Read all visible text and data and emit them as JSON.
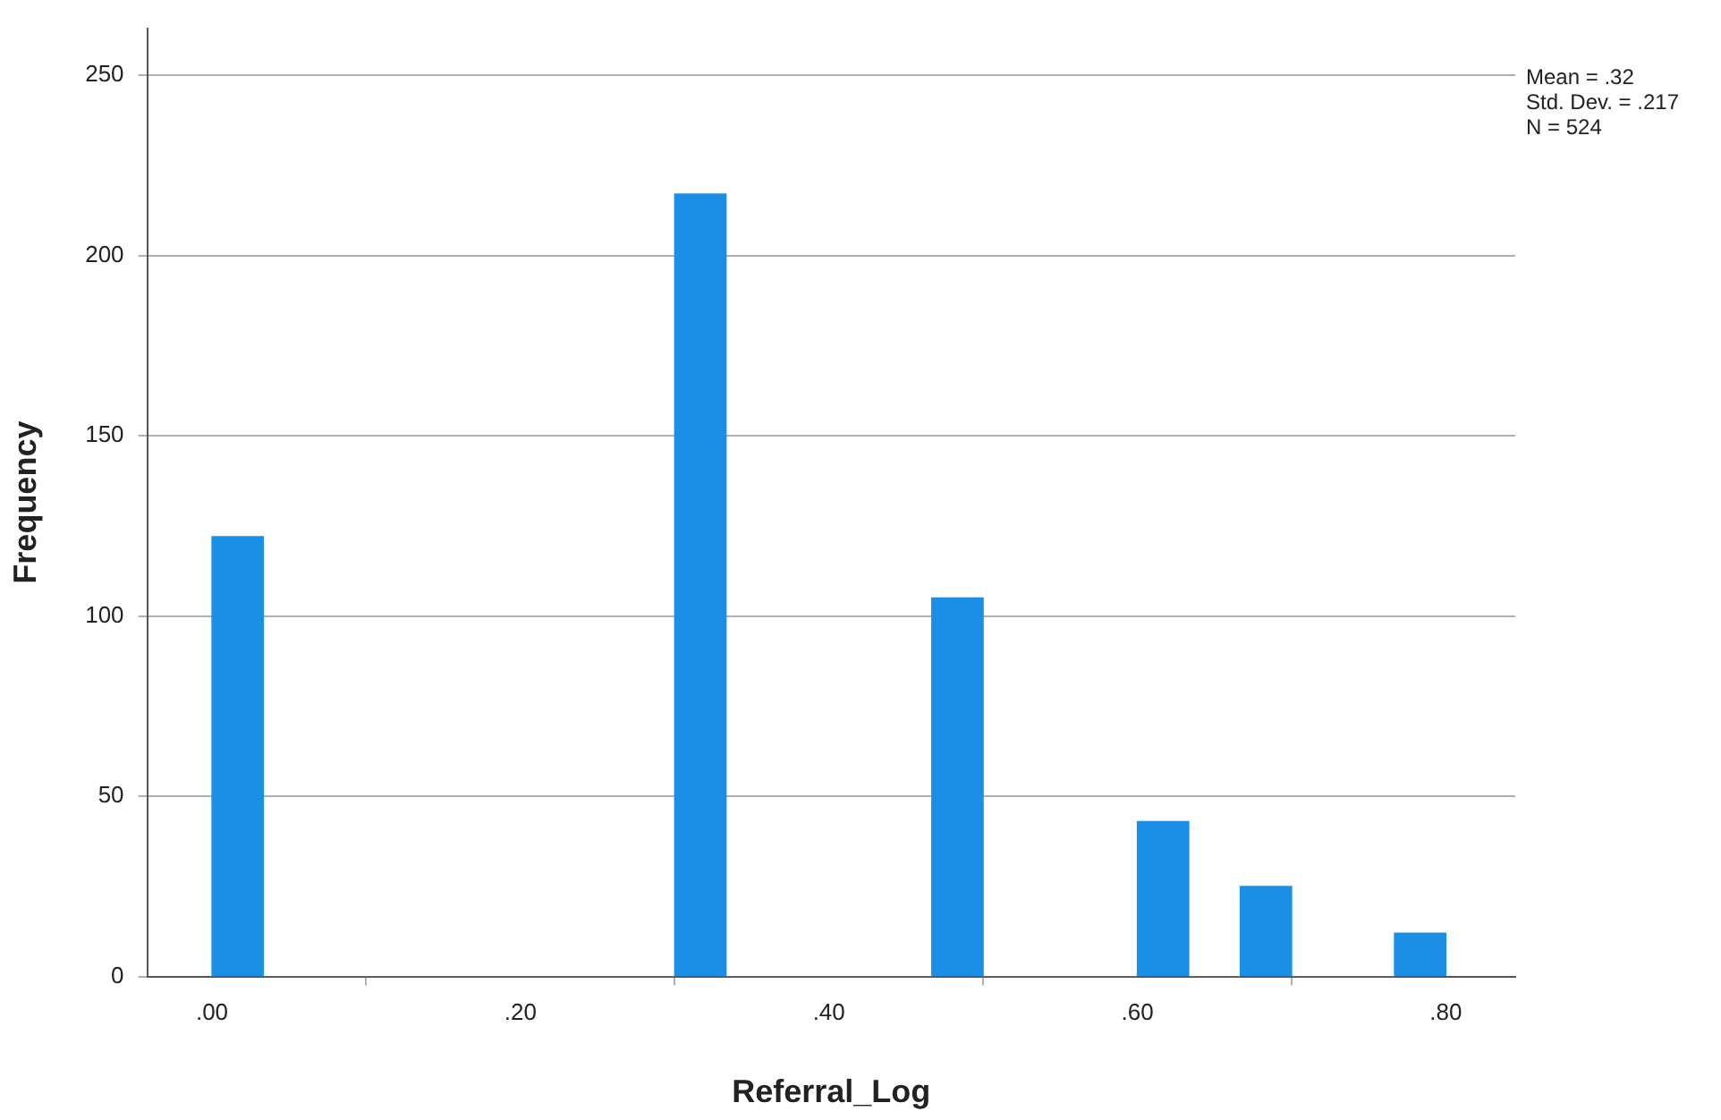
{
  "chart_data": {
    "type": "histogram",
    "xlabel": "Referral_Log",
    "ylabel": "Frequency",
    "bins": [
      0,
      0.0333,
      0.0667,
      0.1,
      0.1333,
      0.1667,
      0.2,
      0.2333,
      0.2667,
      0.3,
      0.3333,
      0.3667,
      0.4,
      0.4333,
      0.4667,
      0.5,
      0.5333,
      0.5667,
      0.6,
      0.6333,
      0.6667,
      0.7,
      0.7333,
      0.7667,
      0.8
    ],
    "values": [
      122,
      0,
      0,
      0,
      0,
      0,
      0,
      0,
      0,
      217,
      0,
      0,
      0,
      0,
      105,
      0,
      0,
      0,
      43,
      0,
      25,
      0,
      0,
      12
    ],
    "color": "#1b8fe6",
    "xlim": [
      -0.042,
      0.845
    ],
    "xticks": [
      {
        "value": 0,
        "label": ".00"
      },
      {
        "value": 0.2,
        "label": ".20"
      },
      {
        "value": 0.4,
        "label": ".40"
      },
      {
        "value": 0.6,
        "label": ".60"
      },
      {
        "value": 0.8,
        "label": ".80"
      }
    ],
    "ylim": [
      0,
      263
    ],
    "yticks": [
      0,
      50,
      100,
      150,
      200,
      250
    ],
    "grid": "y",
    "legend": false,
    "annotations": [
      "Mean = .32",
      "Std. Dev. = .217",
      "N = 524"
    ]
  }
}
